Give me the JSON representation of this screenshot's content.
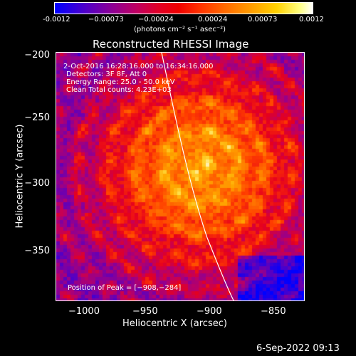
{
  "colorbar": {
    "ticks": [
      "-0.0012",
      "−0.00073",
      "−0.00024",
      "0.00024",
      "0.00073",
      "0.0012"
    ],
    "units": "(photons cm⁻² s⁻¹ asec⁻²)"
  },
  "title": "Reconstructed RHESSI Image",
  "annotations": {
    "time": "2-Oct-2016 16:28:16.000 to 16:34:16.000",
    "detectors": "Detectors: 3F 8F, Att 0",
    "energy": "Energy Range: 25.0 - 50.0 keV",
    "method": "Clean     Total counts: 4.23E+03",
    "peak": "Position of Peak = [−908,−284]"
  },
  "axes": {
    "xlabel": "Heliocentric X (arcsec)",
    "ylabel": "Heliocentric Y (arcsec)",
    "xticks": [
      "−1000",
      "−950",
      "−900",
      "−850"
    ],
    "yticks": [
      "−200",
      "−250",
      "−300",
      "−350"
    ]
  },
  "footer": "6-Sep-2022 09:13"
}
